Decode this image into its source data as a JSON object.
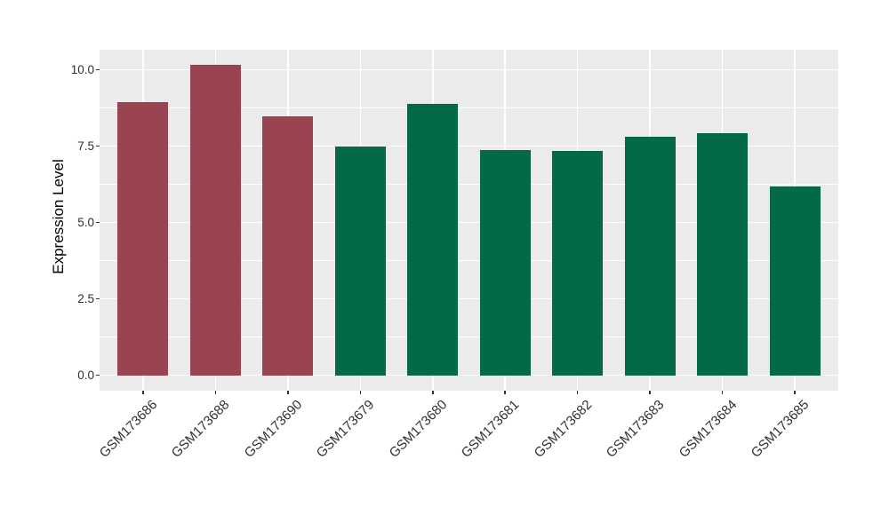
{
  "chart_data": {
    "type": "bar",
    "title": "",
    "xlabel": "",
    "ylabel": "Expression Level",
    "categories": [
      "GSM173686",
      "GSM173688",
      "GSM173690",
      "GSM173679",
      "GSM173680",
      "GSM173681",
      "GSM173682",
      "GSM173683",
      "GSM173684",
      "GSM173685"
    ],
    "values": [
      8.94,
      10.15,
      8.48,
      7.5,
      8.87,
      7.36,
      7.33,
      7.8,
      7.92,
      6.18
    ],
    "colors": [
      "#9A4351",
      "#9A4351",
      "#9A4351",
      "#036947",
      "#036947",
      "#036947",
      "#036947",
      "#036947",
      "#036947",
      "#036947"
    ],
    "ylim": [
      0,
      10.66
    ],
    "yticks": [
      0,
      2.5,
      5,
      7.5,
      10
    ],
    "ytick_labels": [
      "0.0",
      "2.5",
      "5.0",
      "7.5",
      "10.0"
    ],
    "yminor_ticks": [
      1.25,
      3.75,
      6.25,
      8.75
    ],
    "grid": true,
    "legend": "none",
    "bar_width_ratio": 0.7,
    "x_label_angle": -45,
    "panel_background": "#EBEBEB",
    "grid_color": "#FFFFFF",
    "tick_text_color": "#303030"
  }
}
